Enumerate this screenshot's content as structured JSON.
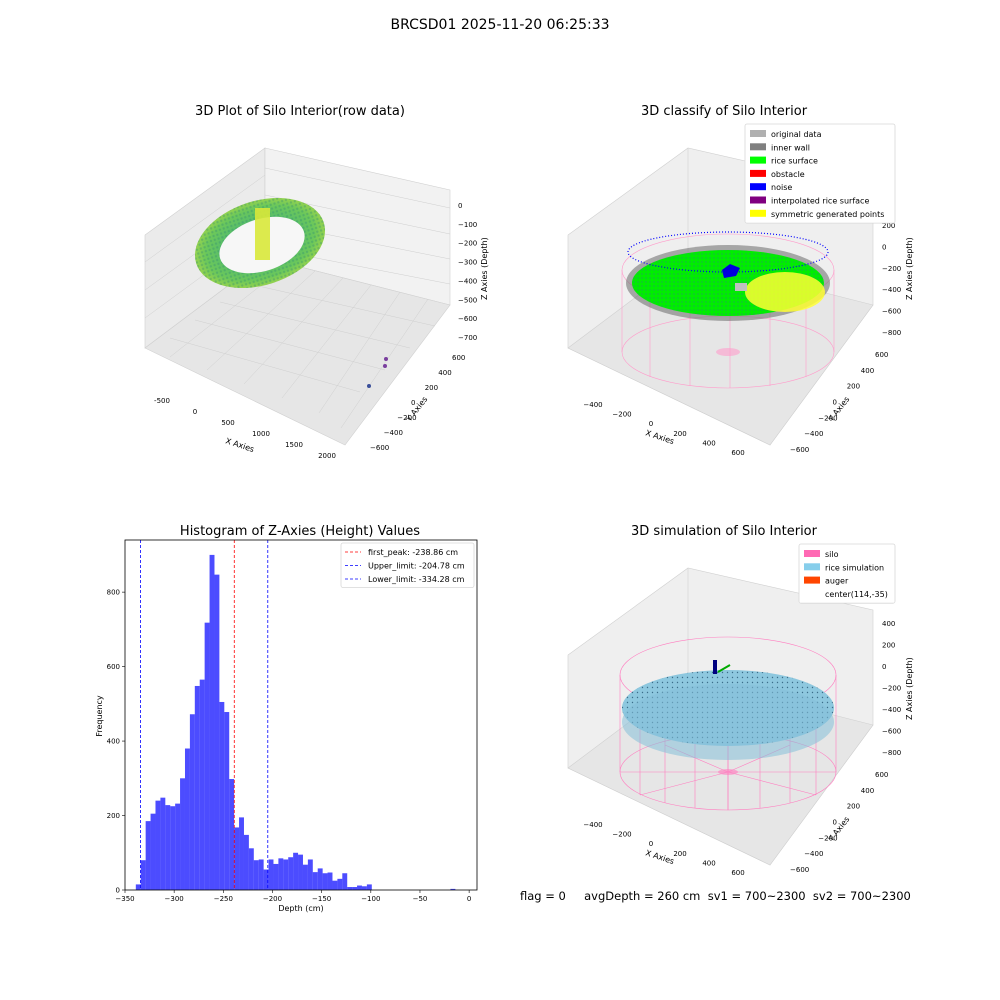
{
  "figure": {
    "suptitle": "BRCSD01 2025-11-20 06:25:33",
    "status_line": "flag = 0     avgDepth = 260 cm  sv1 = 700~2300  sv2 = 700~2300"
  },
  "panels": {
    "raw": {
      "title": "3D Plot of Silo Interior(row data)",
      "xlabel": "X Axies",
      "ylabel": "Y Axies",
      "zlabel": "Z Axies (Depth)",
      "x_ticks": [
        "-500",
        "0",
        "500",
        "1000",
        "1500",
        "2000"
      ],
      "y_ticks": [
        "600",
        "400",
        "200",
        "0",
        "−200",
        "−400",
        "−600"
      ],
      "z_ticks": [
        "0",
        "−100",
        "−200",
        "−300",
        "−400",
        "−500",
        "−600",
        "−700"
      ]
    },
    "classify": {
      "title": "3D classify of Silo Interior",
      "xlabel": "X Axies",
      "ylabel": "Y Axies",
      "zlabel": "Z Axies (Depth)",
      "x_ticks": [
        "−400",
        "−200",
        "0",
        "200",
        "400",
        "600"
      ],
      "y_ticks": [
        "600",
        "400",
        "200",
        "0",
        "−200",
        "−400",
        "−600"
      ],
      "z_ticks": [
        "200",
        "0",
        "−200",
        "−400",
        "−600",
        "−800"
      ],
      "legend": [
        {
          "label": "original data",
          "color": "#b0b0b0"
        },
        {
          "label": "inner wall",
          "color": "#808080"
        },
        {
          "label": "rice surface",
          "color": "#00ff00"
        },
        {
          "label": "obstacle",
          "color": "#ff0000"
        },
        {
          "label": "noise",
          "color": "#0000ff"
        },
        {
          "label": "interpolated rice surface",
          "color": "#800080"
        },
        {
          "label": "symmetric generated points",
          "color": "#ffff00"
        }
      ]
    },
    "simulation": {
      "title": "3D simulation of Silo Interior",
      "xlabel": "X Axies",
      "ylabel": "Y Axies",
      "zlabel": "Z Axies (Depth)",
      "x_ticks": [
        "−400",
        "−200",
        "0",
        "200",
        "400",
        "600"
      ],
      "y_ticks": [
        "600",
        "400",
        "200",
        "0",
        "−200",
        "−400",
        "−600"
      ],
      "z_ticks": [
        "400",
        "200",
        "0",
        "−200",
        "−400",
        "−600",
        "−800"
      ],
      "legend": [
        {
          "label": "silo",
          "color": "#ff69b4"
        },
        {
          "label": "rice simulation",
          "color": "#87ceeb"
        },
        {
          "label": "auger",
          "color": "#ff4500"
        },
        {
          "label": "center(114,-35)",
          "color": ""
        }
      ]
    }
  },
  "chart_data": {
    "type": "bar",
    "title": "Histogram of Z-Axies (Height) Values",
    "xlabel": "Depth (cm)",
    "ylabel": "Frequency",
    "xlim": [
      -350,
      8
    ],
    "ylim": [
      0,
      940
    ],
    "x_ticks": [
      -350,
      -300,
      -250,
      -200,
      -150,
      -100,
      -50,
      0
    ],
    "x_tick_labels": [
      "−350",
      "−300",
      "−250",
      "−200",
      "−150",
      "−100",
      "−50",
      "0"
    ],
    "y_ticks": [
      0,
      200,
      400,
      600,
      800
    ],
    "bar_color": "#0000ff",
    "bin_width": 5,
    "bins_start": [
      -339,
      -334,
      -329,
      -324,
      -319,
      -314,
      -309,
      -304,
      -299,
      -294,
      -289,
      -284,
      -279,
      -274,
      -269,
      -264,
      -259,
      -254,
      -249,
      -244,
      -239,
      -234,
      -229,
      -224,
      -219,
      -214,
      -209,
      -204,
      -199,
      -194,
      -189,
      -184,
      -179,
      -174,
      -169,
      -164,
      -159,
      -154,
      -149,
      -144,
      -139,
      -134,
      -129,
      -124,
      -119,
      -114,
      -109,
      -104,
      -99,
      -94,
      -89,
      -84,
      -79,
      -74,
      -69,
      -64,
      -59,
      -54,
      -49,
      -44,
      -39,
      -34,
      -29,
      -24,
      -19,
      -14,
      -9,
      -4
    ],
    "values": [
      15,
      80,
      185,
      205,
      240,
      248,
      228,
      225,
      232,
      300,
      380,
      472,
      548,
      565,
      718,
      900,
      847,
      505,
      478,
      298,
      168,
      195,
      148,
      112,
      80,
      82,
      55,
      82,
      70,
      85,
      82,
      88,
      100,
      95,
      68,
      82,
      48,
      58,
      45,
      47,
      25,
      30,
      45,
      8,
      8,
      12,
      10,
      15,
      0,
      0,
      0,
      0,
      0,
      0,
      0,
      0,
      0,
      0,
      0,
      0,
      0,
      0,
      0,
      0,
      3,
      0,
      0,
      0
    ],
    "reference_lines": [
      {
        "label": "first_peak: -238.86 cm",
        "x": -238.86,
        "color": "#ff0000"
      },
      {
        "label": "Upper_limit: -204.78 cm",
        "x": -204.78,
        "color": "#0000ff"
      },
      {
        "label": "Lower_limit: -334.28 cm",
        "x": -334.28,
        "color": "#0000ff"
      }
    ]
  }
}
